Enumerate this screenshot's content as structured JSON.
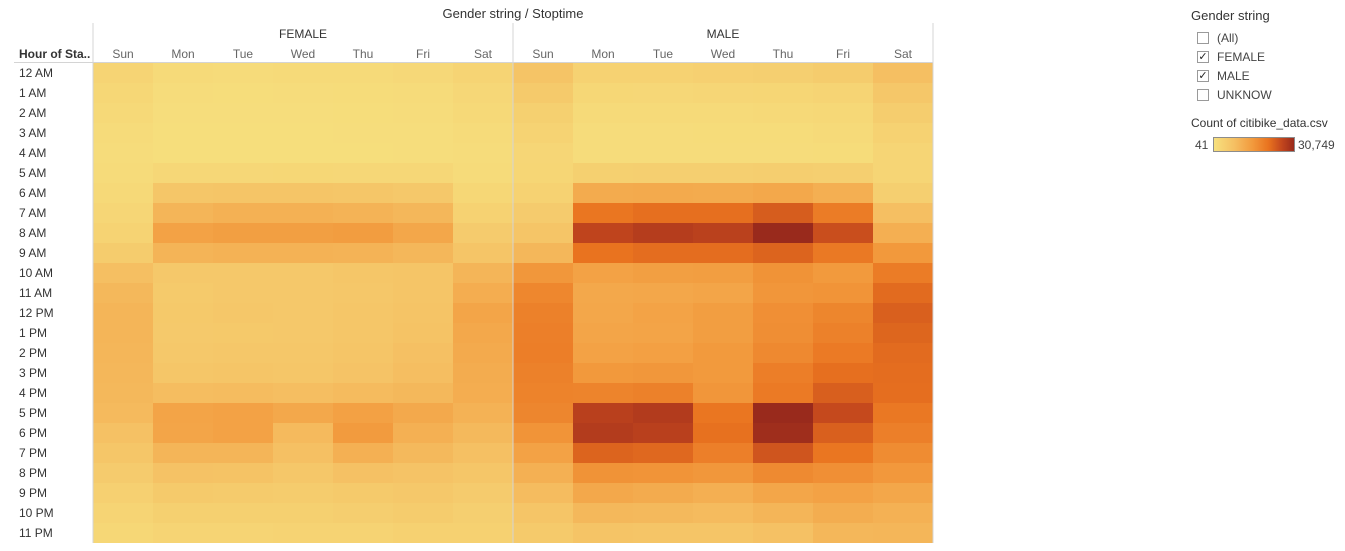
{
  "chart_data": {
    "type": "heatmap",
    "title": "Gender string / Stoptime",
    "row_header": "Hour of Sta..",
    "rows": [
      "12 AM",
      "1 AM",
      "2 AM",
      "3 AM",
      "4 AM",
      "5 AM",
      "6 AM",
      "7 AM",
      "8 AM",
      "9 AM",
      "10 AM",
      "11 AM",
      "12 PM",
      "1 PM",
      "2 PM",
      "3 PM",
      "4 PM",
      "5 PM",
      "6 PM",
      "7 PM",
      "8 PM",
      "9 PM",
      "10 PM",
      "11 PM"
    ],
    "panels": [
      {
        "name": "FEMALE",
        "columns": [
          "Sun",
          "Mon",
          "Tue",
          "Wed",
          "Thu",
          "Fri",
          "Sat"
        ],
        "values": [
          [
            2300,
            1100,
            1000,
            1100,
            1200,
            1500,
            2300
          ],
          [
            1800,
            800,
            700,
            800,
            900,
            1000,
            1700
          ],
          [
            1300,
            600,
            550,
            600,
            650,
            750,
            1300
          ],
          [
            1000,
            500,
            450,
            500,
            550,
            600,
            1000
          ],
          [
            800,
            500,
            450,
            500,
            500,
            550,
            800
          ],
          [
            1000,
            1700,
            1700,
            1800,
            1700,
            1700,
            1000
          ],
          [
            1300,
            5000,
            5200,
            5300,
            5000,
            4700,
            1800
          ],
          [
            1900,
            8000,
            8600,
            8600,
            8300,
            7600,
            2800
          ],
          [
            2600,
            11000,
            11500,
            11500,
            11800,
            10300,
            4000
          ],
          [
            3800,
            8200,
            8400,
            8400,
            8300,
            7600,
            5300
          ],
          [
            6300,
            4600,
            4600,
            4700,
            5000,
            5200,
            8000
          ],
          [
            7500,
            4300,
            4600,
            4600,
            4900,
            5200,
            9200
          ],
          [
            8000,
            4500,
            4800,
            4600,
            5000,
            5500,
            10500
          ],
          [
            8000,
            4400,
            4500,
            4700,
            5100,
            5700,
            10000
          ],
          [
            7800,
            4600,
            4800,
            4900,
            5300,
            6100,
            9700
          ],
          [
            7700,
            5000,
            5200,
            5000,
            5600,
            6500,
            9400
          ],
          [
            7500,
            6600,
            6900,
            6500,
            7000,
            7400,
            9200
          ],
          [
            7100,
            10700,
            11000,
            10000,
            11200,
            9900,
            8400
          ],
          [
            6000,
            10500,
            11000,
            7200,
            12200,
            8800,
            7300
          ],
          [
            5100,
            7900,
            8000,
            6100,
            8700,
            7300,
            6200
          ],
          [
            4000,
            5800,
            5700,
            4900,
            5900,
            5600,
            5100
          ],
          [
            3100,
            4300,
            4100,
            3800,
            4300,
            4600,
            4000
          ],
          [
            2400,
            3200,
            3200,
            3200,
            3400,
            3800,
            3300
          ],
          [
            1800,
            2400,
            2400,
            2500,
            2600,
            3000,
            2900
          ]
        ]
      },
      {
        "name": "MALE",
        "columns": [
          "Sun",
          "Mon",
          "Tue",
          "Wed",
          "Thu",
          "Fri",
          "Sat"
        ],
        "values": [
          [
            5500,
            2700,
            2800,
            3100,
            3300,
            3900,
            6400
          ],
          [
            4300,
            1800,
            1700,
            1900,
            2000,
            2400,
            4800
          ],
          [
            3200,
            1100,
            1100,
            1200,
            1300,
            1600,
            3600
          ],
          [
            2500,
            800,
            800,
            900,
            900,
            1100,
            2700
          ],
          [
            1900,
            800,
            800,
            800,
            800,
            900,
            2200
          ],
          [
            2000,
            3200,
            3300,
            3300,
            3400,
            3300,
            2100
          ],
          [
            2800,
            9500,
            9700,
            9600,
            10000,
            8900,
            3300
          ],
          [
            4000,
            18000,
            19000,
            19000,
            21500,
            17000,
            6300
          ],
          [
            5300,
            25000,
            26500,
            25800,
            30700,
            23500,
            9000
          ],
          [
            7700,
            18500,
            19300,
            19300,
            20500,
            17500,
            12500
          ],
          [
            12800,
            11000,
            11500,
            11600,
            13500,
            12300,
            17000
          ],
          [
            15300,
            10000,
            10300,
            10600,
            13000,
            13300,
            19500
          ],
          [
            16300,
            10300,
            10800,
            11600,
            14000,
            15500,
            21000
          ],
          [
            16500,
            10500,
            10700,
            11700,
            14200,
            16300,
            20300
          ],
          [
            16700,
            11000,
            11300,
            12300,
            15000,
            17300,
            19500
          ],
          [
            16200,
            12500,
            12800,
            12300,
            16700,
            19000,
            19300
          ],
          [
            16000,
            15800,
            16200,
            13000,
            17300,
            21200,
            19100
          ],
          [
            15400,
            26000,
            27000,
            18000,
            30749,
            24200,
            17700
          ],
          [
            13300,
            26800,
            26000,
            18800,
            29800,
            21000,
            16500
          ],
          [
            11000,
            20500,
            20000,
            16500,
            22500,
            18000,
            14500
          ],
          [
            8700,
            13500,
            13300,
            12800,
            14800,
            14000,
            12600
          ],
          [
            6800,
            10000,
            9600,
            9000,
            10400,
            11000,
            10300
          ],
          [
            5300,
            7500,
            7300,
            7000,
            7900,
            9300,
            8600
          ],
          [
            4300,
            5500,
            5300,
            5300,
            6000,
            7600,
            7800
          ]
        ]
      }
    ],
    "color_scale": {
      "min": 41,
      "max": 30749,
      "stops": [
        "#f6e07e",
        "#f5c063",
        "#f29a3d",
        "#e9731f",
        "#c2461d",
        "#992a1c"
      ]
    }
  },
  "legend": {
    "filter_title": "Gender string",
    "filter_items": [
      {
        "label": "(All)",
        "checked": false
      },
      {
        "label": "FEMALE",
        "checked": true
      },
      {
        "label": "MALE",
        "checked": true
      },
      {
        "label": "UNKNOW",
        "checked": false
      }
    ],
    "color_title": "Count of citibike_data.csv",
    "color_min_label": "41",
    "color_max_label": "30,749"
  }
}
